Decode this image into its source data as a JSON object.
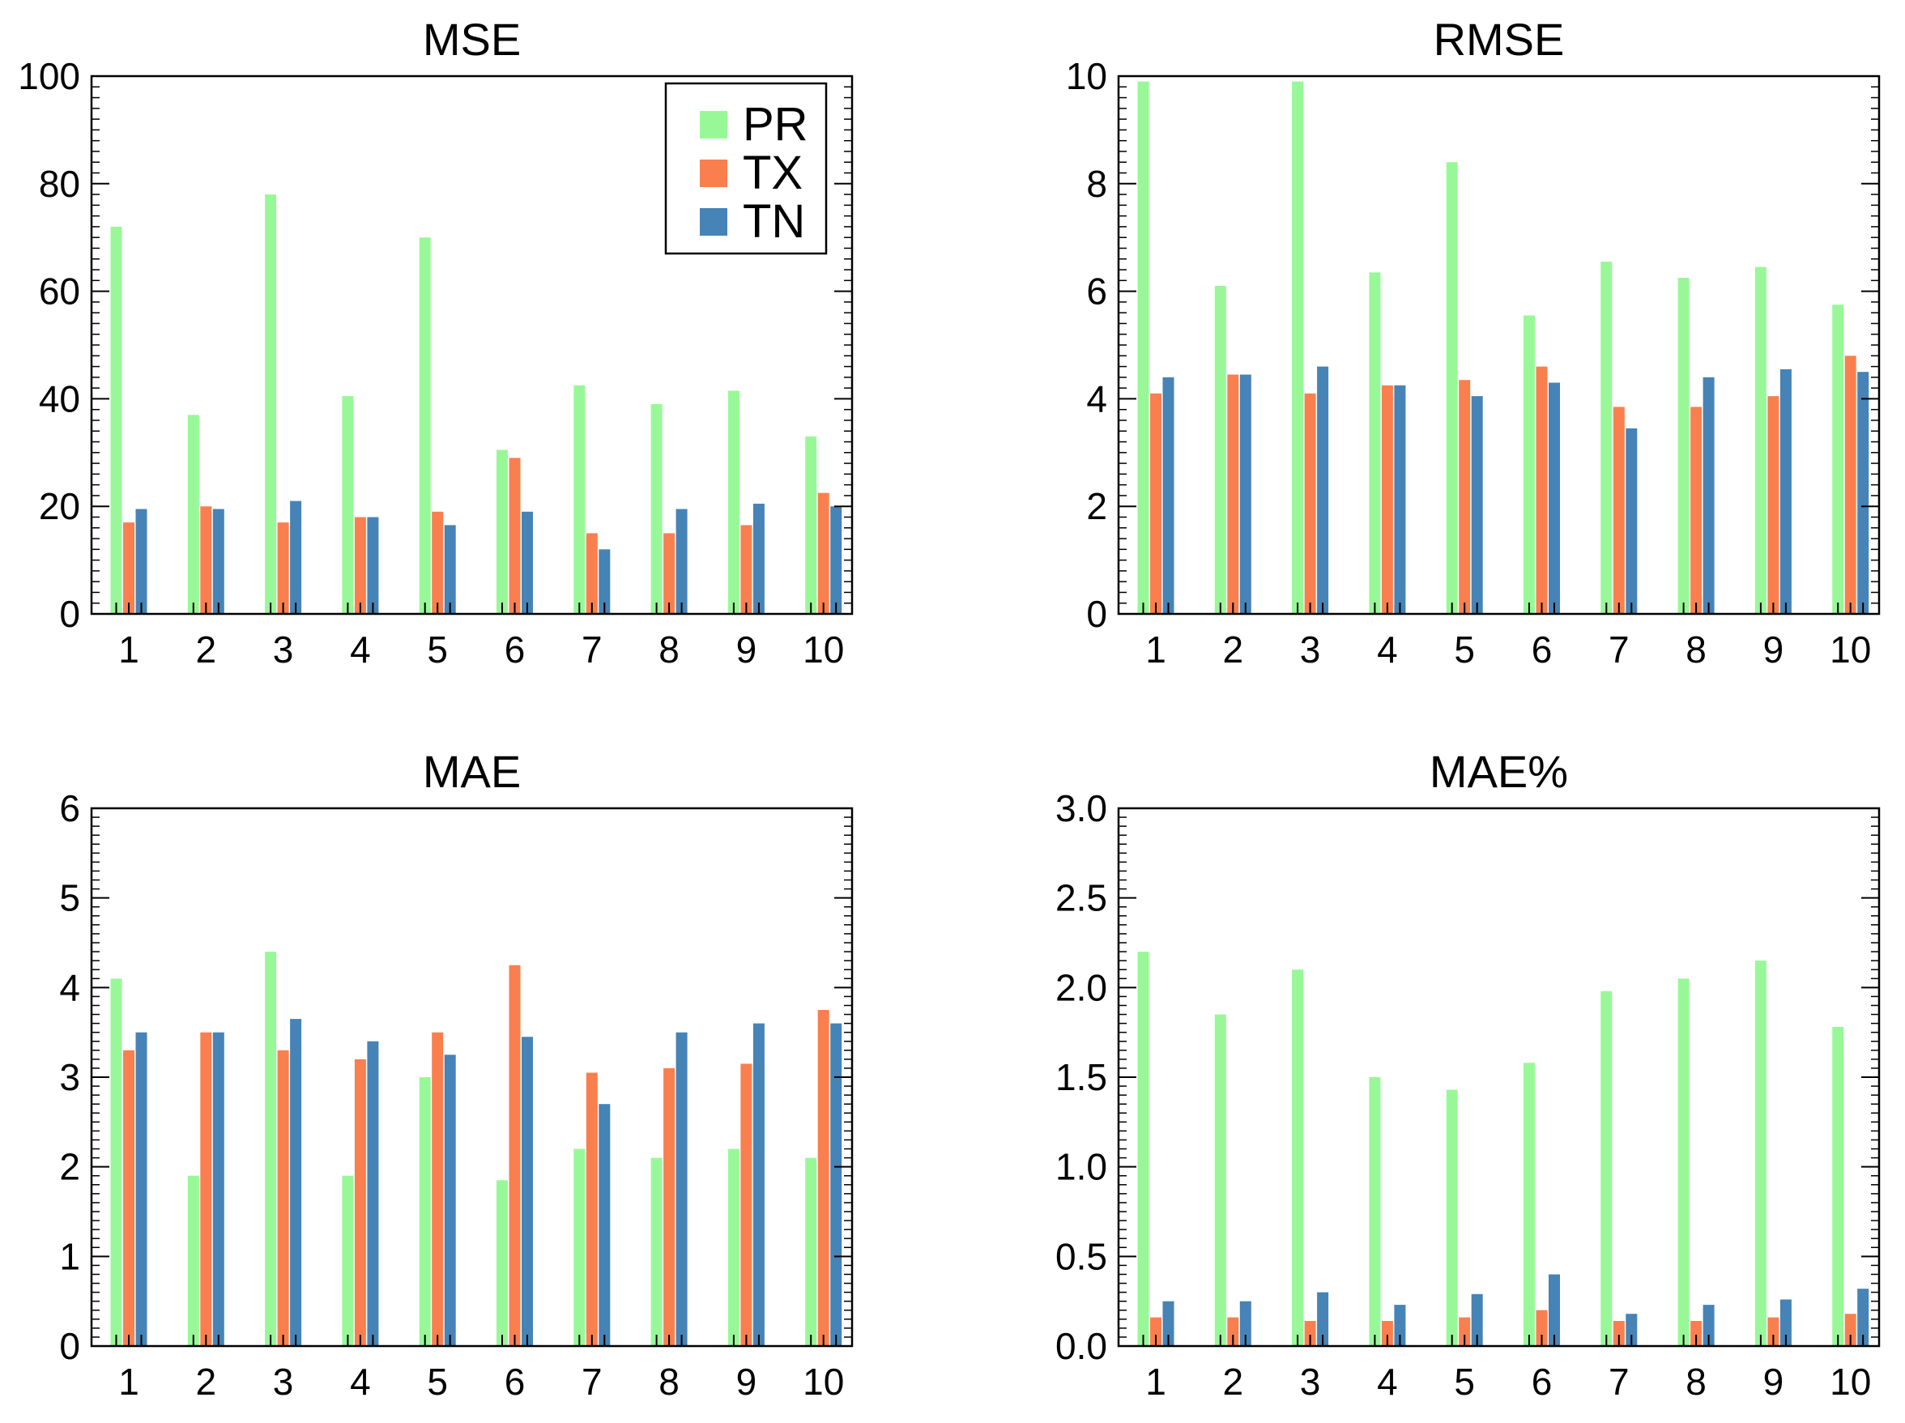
{
  "colors": {
    "PR": "#98F898",
    "TX": "#FA7F4E",
    "TN": "#4683B6",
    "axis": "#000000"
  },
  "chart_data": [
    {
      "type": "bar",
      "title": "MSE",
      "xlabel": "",
      "ylabel": "",
      "categories": [
        "1",
        "2",
        "3",
        "4",
        "5",
        "6",
        "7",
        "8",
        "9",
        "10"
      ],
      "ylim": [
        0,
        100
      ],
      "yticks": [
        "0",
        "20",
        "40",
        "60",
        "80",
        "100"
      ],
      "legend": {
        "placement": "top-right",
        "entries": [
          "PR",
          "TX",
          "TN"
        ]
      },
      "series": [
        {
          "name": "PR",
          "values": [
            72,
            37,
            78,
            40.5,
            70,
            30.5,
            42.5,
            39,
            41.5,
            33
          ]
        },
        {
          "name": "TX",
          "values": [
            17,
            20,
            17,
            18,
            19,
            29,
            15,
            15,
            16.5,
            22.5
          ]
        },
        {
          "name": "TN",
          "values": [
            19.5,
            19.5,
            21,
            18,
            16.5,
            19,
            12,
            19.5,
            20.5,
            20
          ]
        }
      ]
    },
    {
      "type": "bar",
      "title": "RMSE",
      "xlabel": "",
      "ylabel": "",
      "categories": [
        "1",
        "2",
        "3",
        "4",
        "5",
        "6",
        "7",
        "8",
        "9",
        "10"
      ],
      "ylim": [
        0,
        10
      ],
      "yticks": [
        "0",
        "2",
        "4",
        "6",
        "8",
        "10"
      ],
      "series": [
        {
          "name": "PR",
          "values": [
            9.9,
            6.1,
            9.9,
            6.35,
            8.4,
            5.55,
            6.55,
            6.25,
            6.45,
            5.75
          ]
        },
        {
          "name": "TX",
          "values": [
            4.1,
            4.45,
            4.1,
            4.25,
            4.35,
            4.6,
            3.85,
            3.85,
            4.05,
            4.8
          ]
        },
        {
          "name": "TN",
          "values": [
            4.4,
            4.45,
            4.6,
            4.25,
            4.05,
            4.3,
            3.45,
            4.4,
            4.55,
            4.5
          ]
        }
      ]
    },
    {
      "type": "bar",
      "title": "MAE",
      "xlabel": "",
      "ylabel": "",
      "categories": [
        "1",
        "2",
        "3",
        "4",
        "5",
        "6",
        "7",
        "8",
        "9",
        "10"
      ],
      "ylim": [
        0,
        6
      ],
      "yticks": [
        "0",
        "1",
        "2",
        "3",
        "4",
        "5",
        "6"
      ],
      "series": [
        {
          "name": "PR",
          "values": [
            4.1,
            1.9,
            4.4,
            1.9,
            3.0,
            1.85,
            2.2,
            2.1,
            2.2,
            2.1
          ]
        },
        {
          "name": "TX",
          "values": [
            3.3,
            3.5,
            3.3,
            3.2,
            3.5,
            4.25,
            3.05,
            3.1,
            3.15,
            3.75
          ]
        },
        {
          "name": "TN",
          "values": [
            3.5,
            3.5,
            3.65,
            3.4,
            3.25,
            3.45,
            2.7,
            3.5,
            3.6,
            3.6
          ]
        }
      ]
    },
    {
      "type": "bar",
      "title": "MAE%",
      "xlabel": "",
      "ylabel": "",
      "categories": [
        "1",
        "2",
        "3",
        "4",
        "5",
        "6",
        "7",
        "8",
        "9",
        "10"
      ],
      "ylim": [
        0,
        3
      ],
      "yticks": [
        "0.0",
        "0.5",
        "1.0",
        "1.5",
        "2.0",
        "2.5",
        "3.0"
      ],
      "series": [
        {
          "name": "PR",
          "values": [
            2.2,
            1.85,
            2.1,
            1.5,
            1.43,
            1.58,
            1.98,
            2.05,
            2.15,
            1.78
          ]
        },
        {
          "name": "TX",
          "values": [
            0.16,
            0.16,
            0.14,
            0.14,
            0.16,
            0.2,
            0.14,
            0.14,
            0.16,
            0.18
          ]
        },
        {
          "name": "TN",
          "values": [
            0.25,
            0.25,
            0.3,
            0.23,
            0.29,
            0.4,
            0.18,
            0.23,
            0.26,
            0.32
          ]
        }
      ]
    }
  ]
}
